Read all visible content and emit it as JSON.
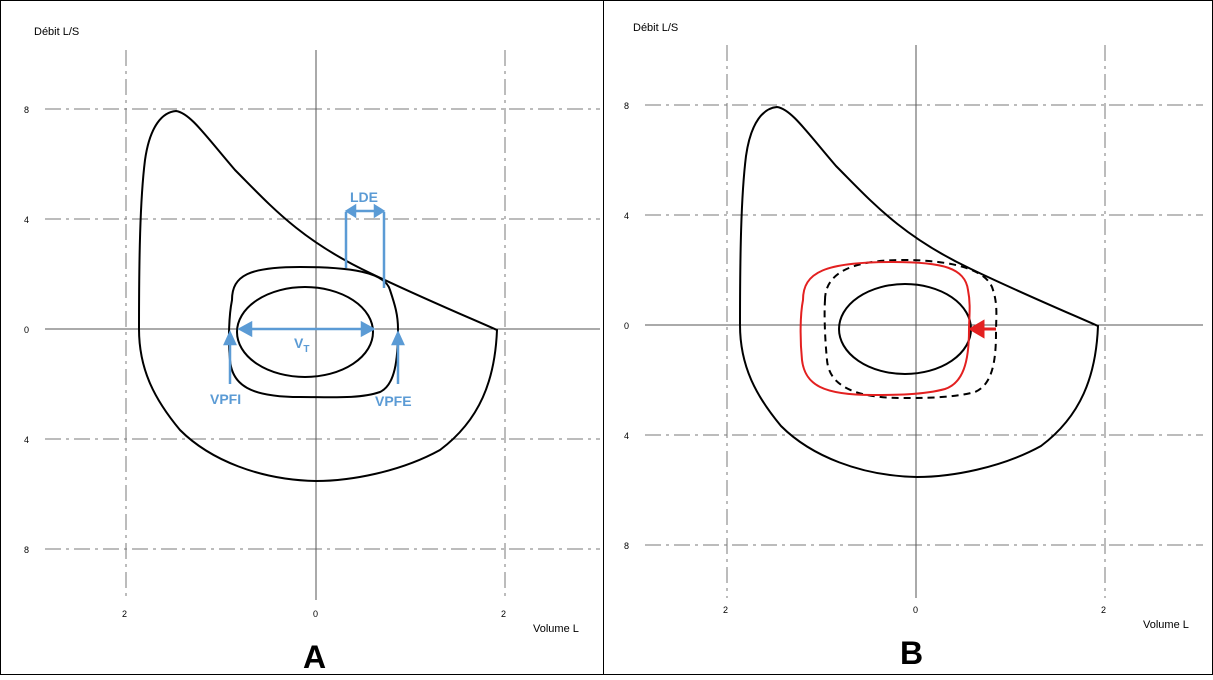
{
  "panel_a": {
    "letter": "A",
    "y_axis_label": "Débit L/S",
    "x_axis_label": "Volume L",
    "y_ticks": [
      "8",
      "4",
      "0",
      "4",
      "8"
    ],
    "x_ticks": [
      "2",
      "0",
      "2"
    ],
    "annotations": {
      "lde": "LDE",
      "vt_main": "V",
      "vt_sub": "T",
      "vpfi": "VPFI",
      "vpfe": "VPFE"
    }
  },
  "panel_b": {
    "letter": "B",
    "y_axis_label": "Débit L/S",
    "x_axis_label": "Volume L",
    "y_ticks": [
      "8",
      "4",
      "0",
      "4",
      "8"
    ],
    "x_ticks": [
      "2",
      "0",
      "2"
    ]
  },
  "colors": {
    "annotation_blue": "#5b9bd5",
    "exercise_loop_red": "#e32020",
    "grid": "#808080",
    "curve": "#000000"
  }
}
